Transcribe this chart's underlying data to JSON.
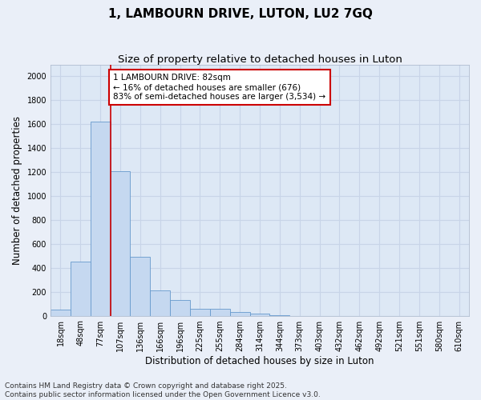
{
  "title_line1": "1, LAMBOURN DRIVE, LUTON, LU2 7GQ",
  "title_line2": "Size of property relative to detached houses in Luton",
  "xlabel": "Distribution of detached houses by size in Luton",
  "ylabel": "Number of detached properties",
  "categories": [
    "18sqm",
    "48sqm",
    "77sqm",
    "107sqm",
    "136sqm",
    "166sqm",
    "196sqm",
    "225sqm",
    "255sqm",
    "284sqm",
    "314sqm",
    "344sqm",
    "373sqm",
    "403sqm",
    "432sqm",
    "462sqm",
    "492sqm",
    "521sqm",
    "551sqm",
    "580sqm",
    "610sqm"
  ],
  "values": [
    50,
    450,
    1620,
    1210,
    490,
    210,
    130,
    55,
    55,
    30,
    20,
    5,
    0,
    0,
    0,
    0,
    0,
    0,
    0,
    0,
    0
  ],
  "bar_color": "#c5d8f0",
  "bar_edge_color": "#6699cc",
  "highlight_line_color": "#cc0000",
  "annotation_text": "1 LAMBOURN DRIVE: 82sqm\n← 16% of detached houses are smaller (676)\n83% of semi-detached houses are larger (3,534) →",
  "annotation_box_color": "#ffffff",
  "annotation_box_edge_color": "#cc0000",
  "ylim": [
    0,
    2100
  ],
  "yticks": [
    0,
    200,
    400,
    600,
    800,
    1000,
    1200,
    1400,
    1600,
    1800,
    2000
  ],
  "bg_color": "#eaeff8",
  "plot_bg_color": "#dde8f5",
  "grid_color": "#c8d4e8",
  "footer_line1": "Contains HM Land Registry data © Crown copyright and database right 2025.",
  "footer_line2": "Contains public sector information licensed under the Open Government Licence v3.0.",
  "title_fontsize": 11,
  "subtitle_fontsize": 9.5,
  "axis_label_fontsize": 8.5,
  "tick_fontsize": 7,
  "annotation_fontsize": 7.5,
  "footer_fontsize": 6.5
}
